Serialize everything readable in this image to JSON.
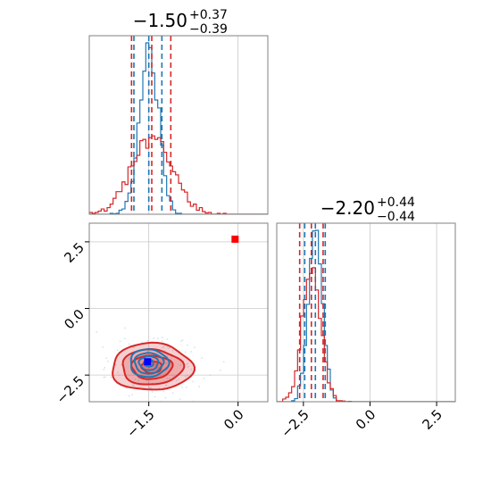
{
  "colors": {
    "blue": "#1f77b4",
    "red": "#d62728",
    "marker_blue": "#0000ff",
    "marker_red": "#ff0000",
    "grid": "#c8c8c8",
    "axis": "#808080"
  },
  "chart_data": {
    "type": "corner",
    "grid": true,
    "params": [
      {
        "range": [
          -2.5,
          0.5
        ],
        "ticks": [
          -1.5,
          0.0
        ],
        "tick_labels": [
          "−1.5",
          "0.0"
        ],
        "title": {
          "median": "−1.50",
          "plus": "+0.37",
          "minus": "−0.39"
        }
      },
      {
        "range": [
          -3.5,
          3.2
        ],
        "ticks": [
          -2.5,
          0.0,
          2.5
        ],
        "tick_labels": [
          "−2.5",
          "0.0",
          "2.5"
        ],
        "title": {
          "median": "−2.20",
          "plus": "+0.44",
          "minus": "−0.44"
        }
      }
    ],
    "hist1": {
      "series": [
        {
          "color": "blue",
          "center": -1.5,
          "sd": 0.16,
          "quantiles": [
            -1.75,
            -1.5,
            -1.28
          ]
        },
        {
          "color": "red",
          "center": -1.45,
          "sd": 0.34,
          "quantiles": [
            -1.79,
            -1.45,
            -1.13
          ]
        }
      ]
    },
    "hist2": {
      "series": [
        {
          "color": "blue",
          "center": -2.05,
          "sd": 0.26,
          "quantiles": [
            -2.45,
            -2.05,
            -1.68
          ]
        },
        {
          "color": "red",
          "center": -2.2,
          "sd": 0.34,
          "quantiles": [
            -2.64,
            -2.2,
            -1.76
          ]
        }
      ]
    },
    "scatter2d": {
      "contours": [
        {
          "color": "red",
          "center": [
            -1.45,
            -2.2
          ],
          "sd": [
            0.34,
            0.44
          ],
          "levels": [
            0.5,
            1.0,
            1.5,
            2.0
          ]
        },
        {
          "color": "blue",
          "center": [
            -1.5,
            -2.05
          ],
          "sd": [
            0.16,
            0.26
          ],
          "levels": [
            0.5,
            1.0,
            1.5,
            2.0
          ]
        }
      ],
      "markers": [
        {
          "color": "marker_blue",
          "x": -1.52,
          "y": -2.0
        },
        {
          "color": "marker_red",
          "x": -0.05,
          "y": 2.6
        }
      ]
    }
  }
}
